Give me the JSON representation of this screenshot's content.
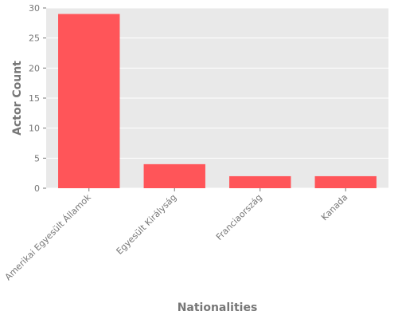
{
  "chart_data": {
    "type": "bar",
    "categories": [
      "Amerikai Egyesült Államok",
      "Egyesült Királyság",
      "Franciaország",
      "Kanada"
    ],
    "values": [
      29,
      4,
      2,
      2
    ],
    "xlabel": "Nationalities",
    "ylabel": "Actor Count",
    "ylim": [
      0,
      30
    ],
    "yticks": [
      0,
      5,
      10,
      15,
      20,
      25,
      30
    ],
    "grid": true,
    "colors": {
      "bar": "#ff5559",
      "plot_bg": "#e9e9e9",
      "grid": "#ffffff",
      "text": "#777777"
    }
  }
}
